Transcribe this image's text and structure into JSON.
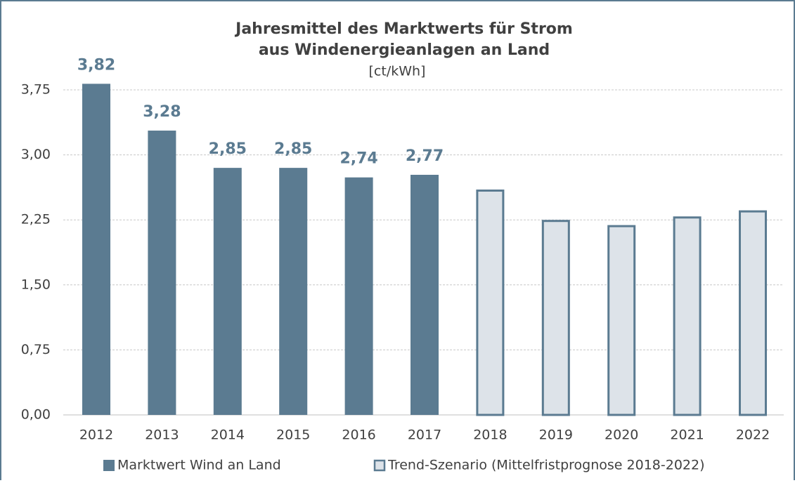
{
  "chart_data": {
    "type": "bar",
    "title": [
      "Jahresmittel des Marktwerts für Strom",
      "aus Windenergieanlagen an Land"
    ],
    "subtitle": "[ct/kWh]",
    "categories": [
      "2012",
      "2013",
      "2014",
      "2015",
      "2016",
      "2017",
      "2018",
      "2019",
      "2020",
      "2021",
      "2022"
    ],
    "series": [
      {
        "name": "Marktwert Wind an Land",
        "color": "#5b7b91",
        "fill": "#5b7b91",
        "values": [
          3.82,
          3.28,
          2.85,
          2.85,
          2.74,
          2.77,
          null,
          null,
          null,
          null,
          null
        ],
        "value_labels": [
          "3,82",
          "3,28",
          "2,85",
          "2,85",
          "2,74",
          "2,77",
          null,
          null,
          null,
          null,
          null
        ]
      },
      {
        "name": "Trend-Szenario (Mittelfristprognose 2018-2022)",
        "color": "#5b7b91",
        "fill": "#dde3e9",
        "values": [
          null,
          null,
          null,
          null,
          null,
          null,
          2.6,
          2.25,
          2.19,
          2.29,
          2.36
        ]
      }
    ],
    "ylim": [
      0,
      3.75
    ],
    "yticks": [
      {
        "value": 0,
        "label": "0,00"
      },
      {
        "value": 0.75,
        "label": "0,75"
      },
      {
        "value": 1.5,
        "label": "1,50"
      },
      {
        "value": 2.25,
        "label": "2,25"
      },
      {
        "value": 3,
        "label": "3,00"
      },
      {
        "value": 3.75,
        "label": "3,75"
      }
    ],
    "grid": true,
    "legend": "bottom"
  }
}
